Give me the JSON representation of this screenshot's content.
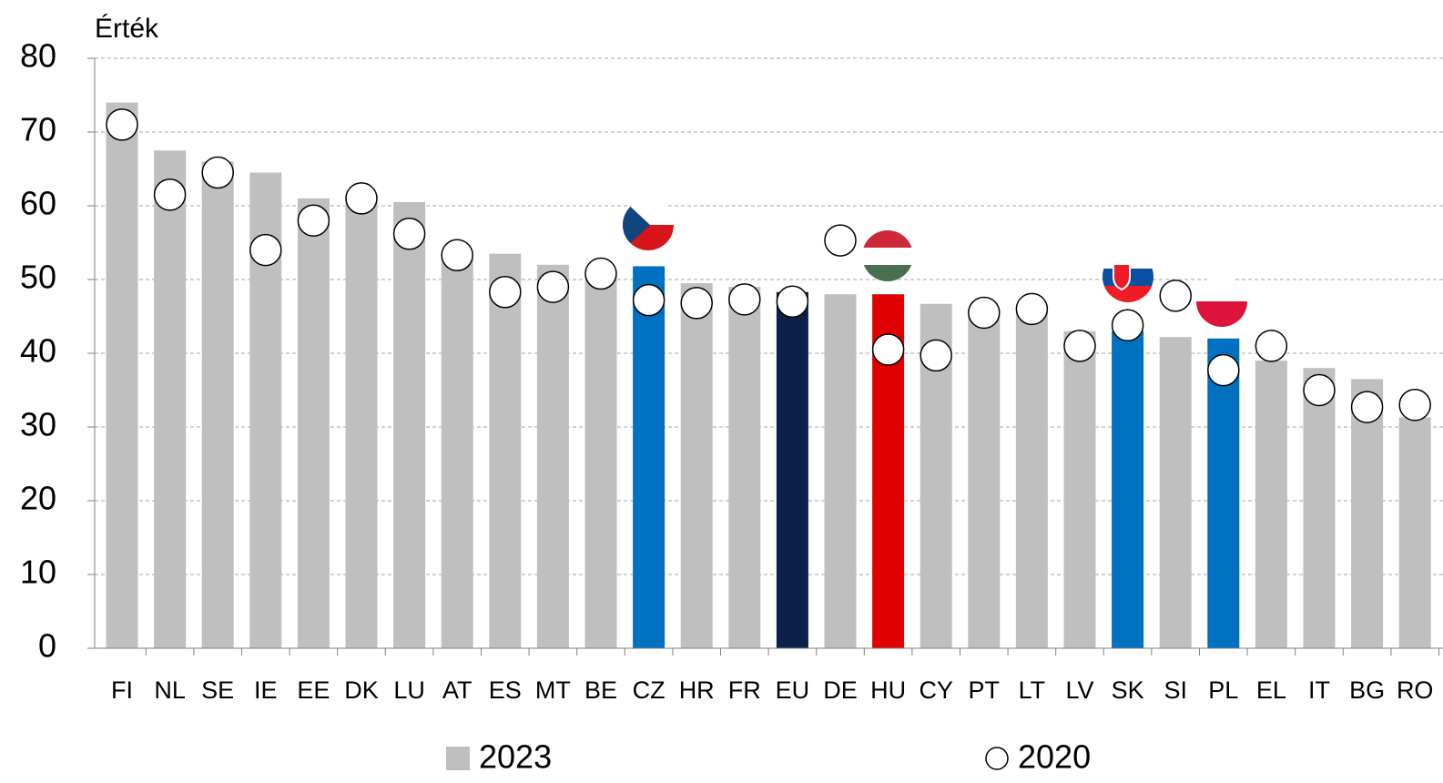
{
  "chart_data": {
    "type": "bar",
    "y_axis_label": "Érték",
    "categories": [
      "FI",
      "NL",
      "SE",
      "IE",
      "EE",
      "DK",
      "LU",
      "AT",
      "ES",
      "MT",
      "BE",
      "CZ",
      "HR",
      "FR",
      "EU",
      "DE",
      "HU",
      "CY",
      "PT",
      "LT",
      "LV",
      "SK",
      "SI",
      "PL",
      "EL",
      "IT",
      "BG",
      "RO"
    ],
    "series": [
      {
        "name": "2023",
        "color": "#bfbfbf",
        "marker": "bar",
        "colors": [
          "#bfbfbf",
          "#bfbfbf",
          "#bfbfbf",
          "#bfbfbf",
          "#bfbfbf",
          "#bfbfbf",
          "#bfbfbf",
          "#bfbfbf",
          "#bfbfbf",
          "#bfbfbf",
          "#bfbfbf",
          "#0070c0",
          "#bfbfbf",
          "#bfbfbf",
          "#0c2149",
          "#bfbfbf",
          "#e00000",
          "#bfbfbf",
          "#bfbfbf",
          "#bfbfbf",
          "#bfbfbf",
          "#0070c0",
          "#bfbfbf",
          "#0070c0",
          "#bfbfbf",
          "#bfbfbf",
          "#bfbfbf",
          "#bfbfbf"
        ],
        "values": [
          74,
          67.5,
          66,
          64.5,
          61,
          60.5,
          60.5,
          53,
          53.5,
          52,
          51.3,
          51.8,
          49.5,
          49,
          48.3,
          48,
          48,
          46.7,
          45.5,
          46,
          43,
          43,
          42.2,
          42,
          39,
          38,
          36.5,
          31.3
        ]
      },
      {
        "name": "2020",
        "color": "#ffffff",
        "marker": "circle",
        "values": [
          71,
          61.5,
          64.5,
          54,
          58,
          61,
          56.2,
          53.3,
          48.3,
          49,
          50.8,
          47.2,
          46.8,
          47.3,
          47,
          55.3,
          40.5,
          39.7,
          45.5,
          46,
          41,
          43.8,
          47.8,
          37.7,
          41,
          35,
          32.7,
          33
        ]
      }
    ],
    "ylim": [
      0,
      80
    ],
    "yticks": [
      0,
      10,
      20,
      30,
      40,
      50,
      60,
      70,
      80
    ],
    "grid": true
  }
}
